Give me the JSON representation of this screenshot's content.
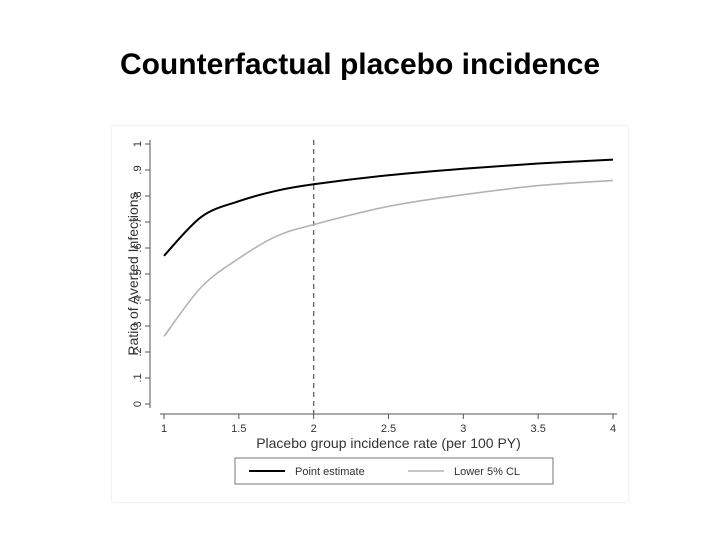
{
  "slide": {
    "title": "Counterfactual placebo incidence"
  },
  "chart_data": {
    "type": "line",
    "xlabel": "Placebo group incidence rate (per 100 PY)",
    "ylabel": "Ratio of Averted Infections",
    "xlim": [
      1,
      4
    ],
    "ylim": [
      0,
      1
    ],
    "xticks": [
      1,
      1.5,
      2,
      2.5,
      3,
      3.5,
      4
    ],
    "xtick_labels": [
      "1",
      "1.5",
      "2",
      "2.5",
      "3",
      "3.5",
      "4"
    ],
    "yticks": [
      0,
      0.1,
      0.2,
      0.3,
      0.4,
      0.5,
      0.6,
      0.7,
      0.8,
      0.9,
      1
    ],
    "ytick_labels": [
      "0",
      ".1",
      ".2",
      ".3",
      ".4",
      ".5",
      ".6",
      ".7",
      ".8",
      ".9",
      "1"
    ],
    "reference_line": {
      "x": 2,
      "style": "dashed"
    },
    "legend_position": "bottom",
    "grid": false,
    "x": [
      1,
      1.25,
      1.5,
      1.75,
      2,
      2.5,
      3,
      3.5,
      4
    ],
    "series": [
      {
        "name": "Point estimate",
        "color": "#000000",
        "values": [
          0.57,
          0.72,
          0.78,
          0.82,
          0.845,
          0.88,
          0.905,
          0.925,
          0.94
        ]
      },
      {
        "name": "Lower 5% CL",
        "color": "#b3b3b3",
        "values": [
          0.26,
          0.45,
          0.56,
          0.645,
          0.69,
          0.76,
          0.805,
          0.84,
          0.86
        ]
      }
    ]
  }
}
